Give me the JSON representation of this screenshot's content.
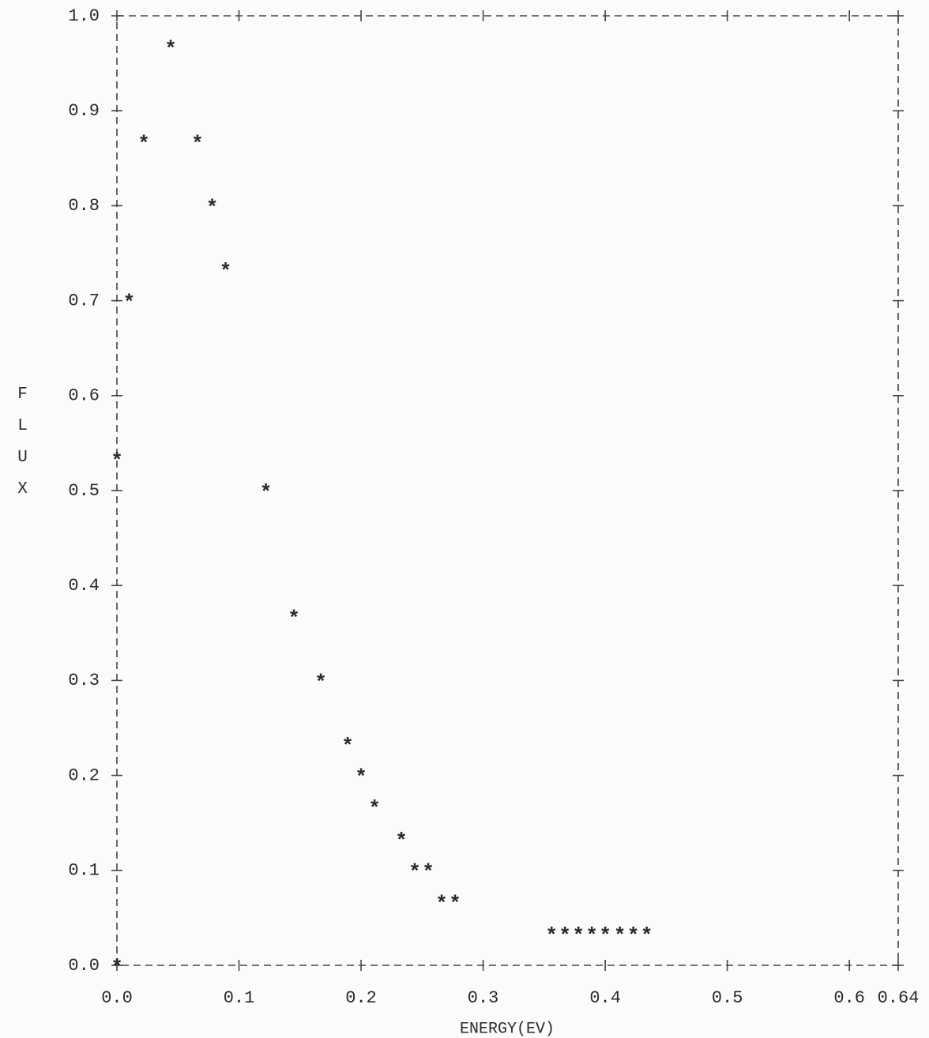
{
  "chart_data": {
    "type": "scatter",
    "x_label": "ENERGY(EV)",
    "y_label": "FLUX",
    "marker": "*",
    "color": "#2a2a2a",
    "x": [
      0.0,
      0.01,
      0.022,
      0.044,
      0.066,
      0.078,
      0.089,
      0.0,
      0.122,
      0.145,
      0.167,
      0.189,
      0.2,
      0.211,
      0.233,
      0.244,
      0.255,
      0.266,
      0.277,
      0.356,
      0.367,
      0.378,
      0.389,
      0.4,
      0.412,
      0.423,
      0.434
    ],
    "values": [
      0.0,
      0.7,
      0.867,
      0.967,
      0.867,
      0.8,
      0.733,
      0.533,
      0.5,
      0.367,
      0.3,
      0.233,
      0.2,
      0.167,
      0.133,
      0.1,
      0.1,
      0.067,
      0.067,
      0.033,
      0.033,
      0.033,
      0.033,
      0.033,
      0.033,
      0.033,
      0.033
    ],
    "xlim": [
      0,
      0.64
    ],
    "ylim": [
      0,
      1.0
    ],
    "xticks": [
      {
        "value": 0,
        "label": "0.0"
      },
      0.1,
      0.2,
      0.3,
      0.4,
      0.5,
      0.6,
      0.64
    ],
    "yticks": [
      {
        "value": 0,
        "label": "0.0"
      },
      0.1,
      0.2,
      0.3,
      0.4,
      0.5,
      0.6,
      0.7,
      0.8,
      0.9,
      {
        "value": 1.0,
        "label": "1.0"
      }
    ],
    "grid": false
  }
}
